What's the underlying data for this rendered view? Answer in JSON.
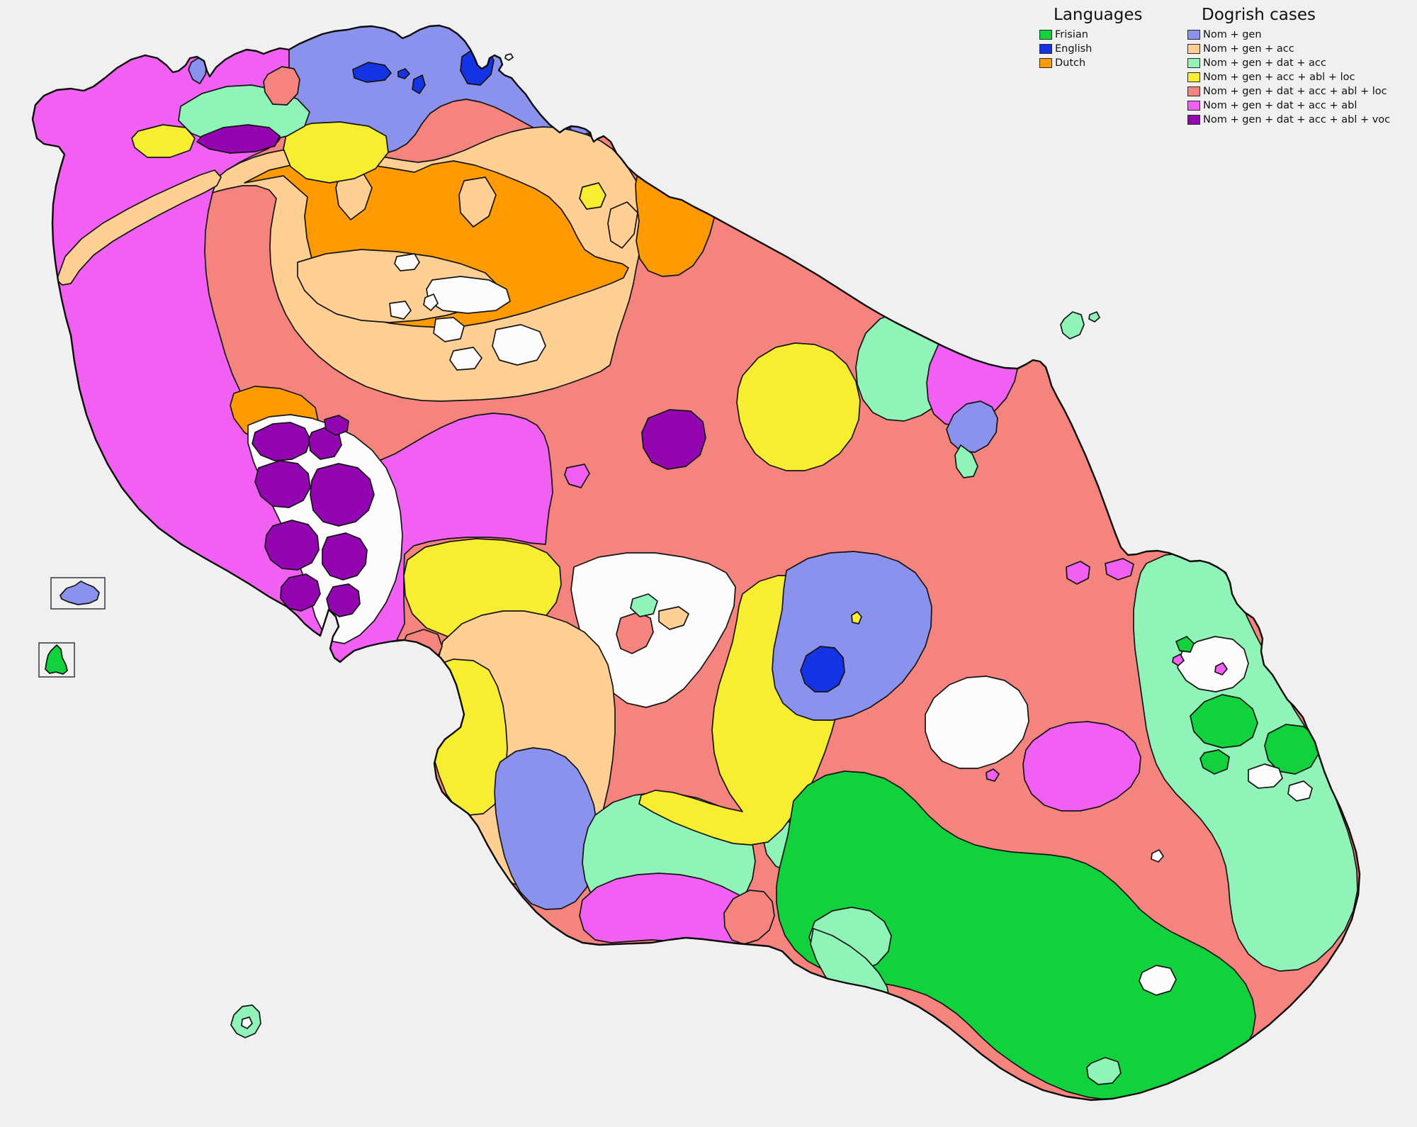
{
  "page": {
    "background": "#f1f0f1"
  },
  "legend_languages": {
    "title": "Languages",
    "items": [
      {
        "label": "Frisian",
        "color": "#11d13c"
      },
      {
        "label": "English",
        "color": "#1434e4"
      },
      {
        "label": "Dutch",
        "color": "#ff9b00"
      }
    ]
  },
  "legend_cases": {
    "title": "Dogrish cases",
    "items": [
      {
        "label": "Nom + gen",
        "color": "#8b92ee"
      },
      {
        "label": "Nom + gen + acc",
        "color": "#ffcf94"
      },
      {
        "label": "Nom + gen + dat + acc",
        "color": "#90f4b8"
      },
      {
        "label": "Nom + gen + acc + abl + loc",
        "color": "#f7ee32"
      },
      {
        "label": "Nom + gen + dat + acc + abl + loc",
        "color": "#f5837e"
      },
      {
        "label": "Nom + gen + dat + acc + abl",
        "color": "#f160f3"
      },
      {
        "label": "Nom + gen + dat + acc + abl + voc",
        "color": "#9405b2"
      }
    ]
  },
  "palette": {
    "nom_gen": "#8b92ee",
    "nom_gen_acc": "#ffcf94",
    "nom_gen_dat_acc": "#90f4b8",
    "nom_gen_acc_abl_loc": "#f7ee32",
    "nom_gen_dat_acc_abl_loc": "#f5837e",
    "nom_gen_dat_acc_abl": "#f160f3",
    "nom_gen_dat_acc_abl_voc": "#9405b2",
    "frisian": "#11d13c",
    "english": "#1434e4",
    "dutch": "#ff9b00",
    "no_data": "#fcfcfc",
    "water": "#f1f0f1",
    "coast": "#141414"
  }
}
